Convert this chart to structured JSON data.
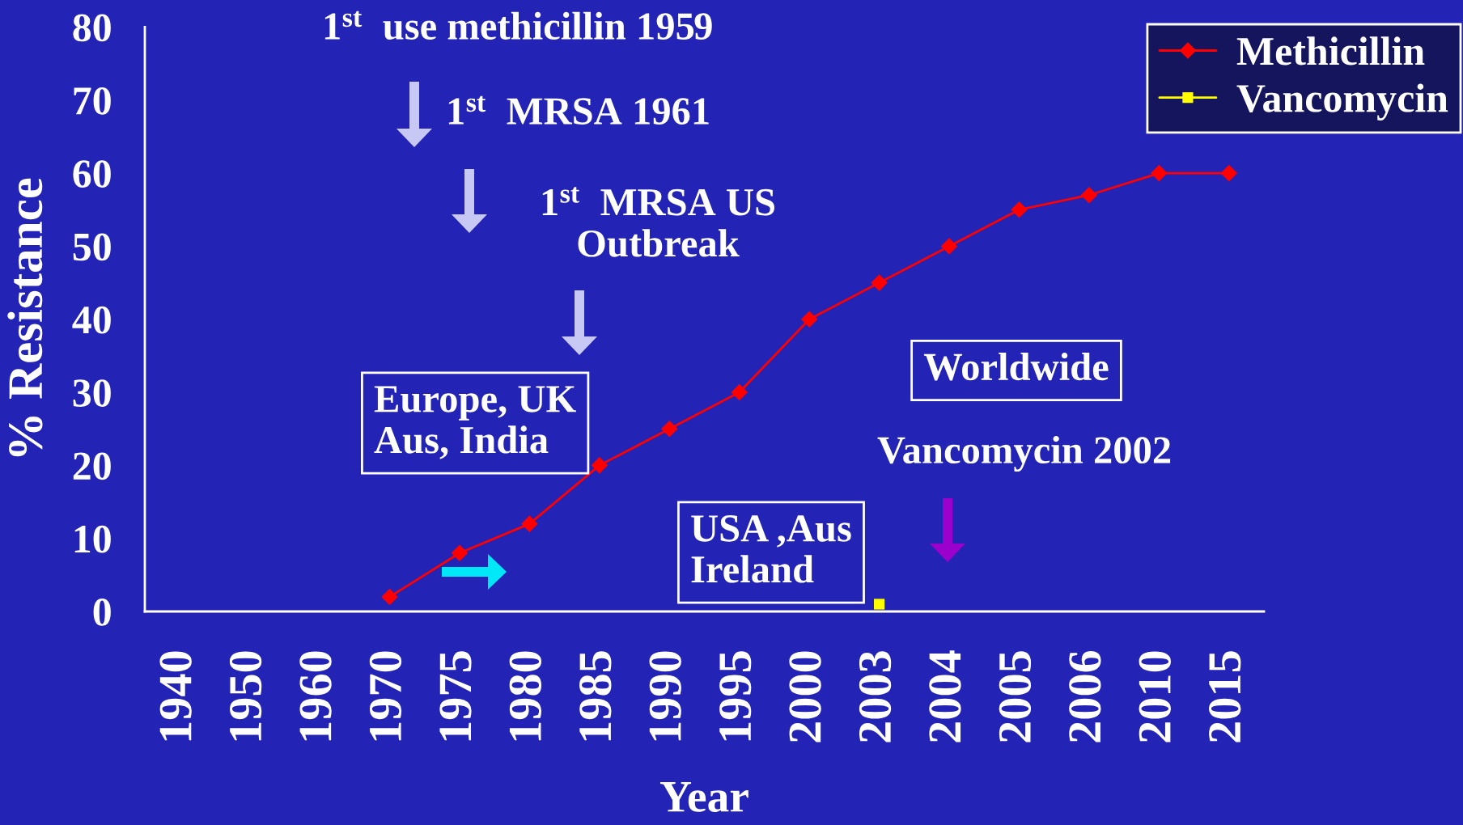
{
  "chart_data": {
    "type": "line",
    "xlabel": "Year",
    "ylabel": "% Resistance",
    "categories": [
      "1940",
      "1950",
      "1960",
      "1970",
      "1975",
      "1980",
      "1985",
      "1990",
      "1995",
      "2000",
      "2003",
      "2004",
      "2005",
      "2006",
      "2010",
      "2015"
    ],
    "series": [
      {
        "name": "Methicillin",
        "color": "#ff0000",
        "marker": "diamond",
        "values": [
          null,
          null,
          null,
          2,
          8,
          12,
          20,
          25,
          30,
          40,
          45,
          50,
          55,
          57,
          60,
          60
        ]
      },
      {
        "name": "Vancomycin",
        "color": "#ffff00",
        "marker": "square",
        "values": [
          null,
          null,
          null,
          null,
          null,
          null,
          null,
          null,
          null,
          null,
          1,
          null,
          null,
          null,
          null,
          null
        ]
      }
    ],
    "ylim": [
      0,
      80
    ],
    "yticks": [
      0,
      10,
      20,
      30,
      40,
      50,
      60,
      70,
      80
    ],
    "line_style": "solid",
    "legend": "top right",
    "annotations": [
      "1$^{st}$  use methicillin 1959",
      "1$^{st}$  MRSA 1961",
      "1$^{st}$  MRSA US\nOutbreak",
      "Europe, UK\nAus, India",
      "USA ,Aus\nIreland",
      "Worldwide",
      "Vancomycin 2002"
    ]
  }
}
